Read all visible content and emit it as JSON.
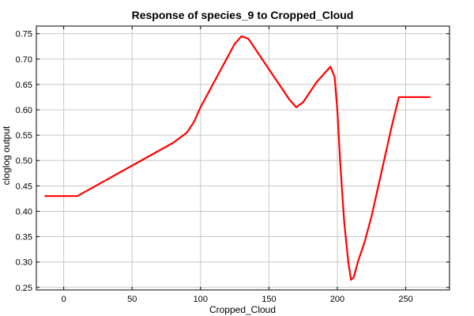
{
  "chart_data": {
    "type": "line",
    "title": "Response of species_9 to Cropped_Cloud",
    "xlabel": "Cropped_Cloud",
    "ylabel": "cloglog output",
    "xlim": [
      -20,
      282
    ],
    "ylim": [
      0.245,
      0.765
    ],
    "xticks": [
      0,
      50,
      100,
      150,
      200,
      250
    ],
    "yticks": [
      0.25,
      0.3,
      0.35,
      0.4,
      0.45,
      0.5,
      0.55,
      0.6,
      0.65,
      0.7,
      0.75
    ],
    "ytick_labels": [
      "0.25",
      "0.30",
      "0.35",
      "0.40",
      "0.45",
      "0.50",
      "0.55",
      "0.60",
      "0.65",
      "0.70",
      "0.75"
    ],
    "grid": true,
    "series": [
      {
        "color": "#ff0000",
        "x": [
          -14,
          10,
          20,
          30,
          40,
          50,
          60,
          70,
          80,
          90,
          95,
          100,
          105,
          110,
          115,
          120,
          125,
          130,
          135,
          140,
          150,
          160,
          165,
          170,
          175,
          180,
          185,
          190,
          195,
          198,
          200,
          202,
          205,
          208,
          210,
          212,
          215,
          220,
          225,
          230,
          235,
          240,
          245,
          268
        ],
        "y": [
          0.43,
          0.43,
          0.445,
          0.46,
          0.475,
          0.49,
          0.505,
          0.52,
          0.535,
          0.555,
          0.575,
          0.605,
          0.63,
          0.655,
          0.68,
          0.705,
          0.73,
          0.745,
          0.74,
          0.72,
          0.68,
          0.64,
          0.62,
          0.605,
          0.615,
          0.635,
          0.655,
          0.67,
          0.685,
          0.665,
          0.6,
          0.5,
          0.38,
          0.3,
          0.265,
          0.27,
          0.3,
          0.34,
          0.39,
          0.45,
          0.51,
          0.57,
          0.625,
          0.625
        ]
      }
    ]
  }
}
